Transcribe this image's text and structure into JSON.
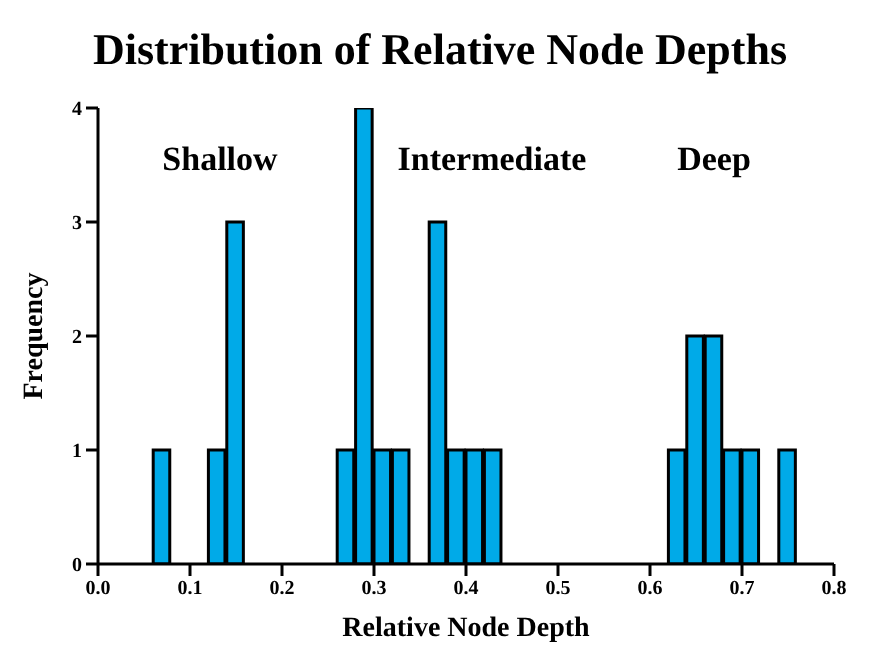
{
  "chart_data": {
    "type": "histogram",
    "title": "Distribution of Relative Node Depths",
    "xlabel": "Relative Node Depth",
    "ylabel": "Frequency",
    "bins": [
      0,
      0.02,
      0.04,
      0.06,
      0.08,
      0.1,
      0.12,
      0.14,
      0.16,
      0.18,
      0.2,
      0.22,
      0.24,
      0.26,
      0.28,
      0.3,
      0.32,
      0.34,
      0.36,
      0.38,
      0.4,
      0.42,
      0.44,
      0.46,
      0.48,
      0.5,
      0.52,
      0.54,
      0.56,
      0.58,
      0.6,
      0.62,
      0.64,
      0.66,
      0.68,
      0.7,
      0.72,
      0.74,
      0.76,
      0.78,
      0.8
    ],
    "values": [
      0,
      0,
      0,
      1,
      0,
      0,
      1,
      3,
      0,
      0,
      0,
      0,
      0,
      1,
      4,
      1,
      1,
      0,
      3,
      1,
      1,
      1,
      0,
      0,
      0,
      0,
      0,
      0,
      0,
      0,
      0,
      1,
      2,
      2,
      1,
      1,
      0,
      1,
      0,
      0
    ],
    "color": "#00aae8",
    "xlim": [
      0,
      0.8
    ],
    "xticks": [
      {
        "value": 0,
        "label": "0.0"
      },
      0.1,
      0.2,
      0.3,
      0.4,
      0.5,
      0.6,
      0.7,
      0.8
    ],
    "ylim": [
      0,
      4
    ],
    "yticks": [
      0,
      1,
      2,
      3,
      4
    ],
    "grid": false,
    "annotations": [
      "Shallow",
      "Intermediate",
      "Deep"
    ]
  }
}
